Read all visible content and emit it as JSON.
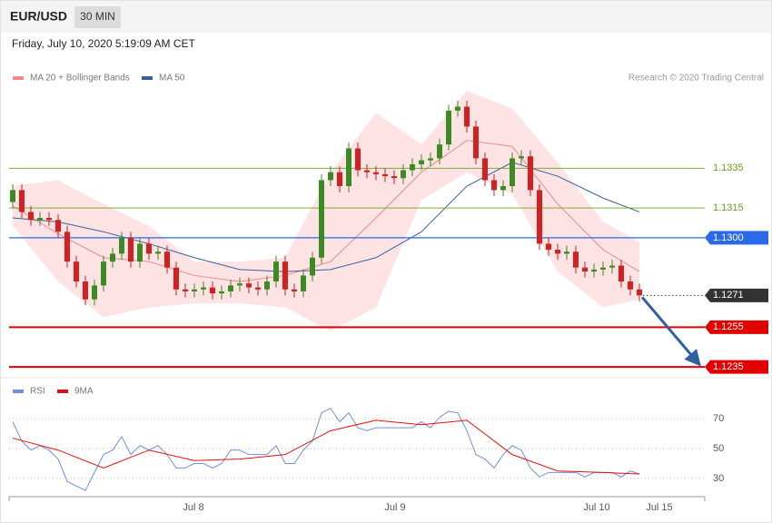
{
  "header": {
    "symbol": "EUR/USD",
    "interval": "30 MIN",
    "timestamp": "Friday, July 10, 2020 5:19:09 AM CET"
  },
  "chart_data": [
    {
      "type": "candlestick",
      "annotation": "Research © 2020 Trading Central",
      "up_color": "#3b8a22",
      "down_color": "#d42020",
      "xlim": [
        -0.4,
        76.2
      ],
      "ylim": [
        1.123,
        1.139
      ],
      "open": [
        1.1318,
        1.1324,
        1.1313,
        1.1309,
        1.131,
        1.1309,
        1.1303,
        1.1288,
        1.1278,
        1.1269,
        1.1276,
        1.1288,
        1.1292,
        1.13,
        1.1288,
        1.1297,
        1.1292,
        1.1293,
        1.1285,
        1.1274,
        1.1273,
        1.1274,
        1.1275,
        1.1272,
        1.1273,
        1.1276,
        1.1277,
        1.1275,
        1.1274,
        1.1278,
        1.1288,
        1.1274,
        1.1273,
        1.1281,
        1.129,
        1.1329,
        1.1333,
        1.1326,
        1.1345,
        1.1334,
        1.1333,
        1.1332,
        1.1331,
        1.133,
        1.1334,
        1.1337,
        1.1339,
        1.134,
        1.1347,
        1.1364,
        1.1366,
        1.1356,
        1.134,
        1.1329,
        1.1324,
        1.1326,
        1.134,
        1.1341,
        1.1324,
        1.1297,
        1.1294,
        1.1292,
        1.1293,
        1.1285,
        1.1283,
        1.1284,
        1.1285,
        1.1286,
        1.1278,
        1.1274
      ],
      "high": [
        1.1327,
        1.1327,
        1.1316,
        1.1313,
        1.1313,
        1.1312,
        1.1306,
        1.1291,
        1.1281,
        1.1279,
        1.1291,
        1.1295,
        1.1303,
        1.1303,
        1.13,
        1.13,
        1.1296,
        1.1296,
        1.1288,
        1.1277,
        1.1277,
        1.1278,
        1.1278,
        1.1276,
        1.1279,
        1.128,
        1.128,
        1.1278,
        1.1281,
        1.1291,
        1.1291,
        1.1277,
        1.1284,
        1.1293,
        1.1332,
        1.1336,
        1.1336,
        1.1348,
        1.1348,
        1.1337,
        1.1336,
        1.1335,
        1.1334,
        1.1337,
        1.134,
        1.1342,
        1.1343,
        1.135,
        1.1367,
        1.1369,
        1.1369,
        1.1359,
        1.1343,
        1.1332,
        1.1329,
        1.1343,
        1.1344,
        1.1344,
        1.1327,
        1.13,
        1.1297,
        1.1296,
        1.1296,
        1.1288,
        1.1287,
        1.1288,
        1.1289,
        1.1289,
        1.1281,
        1.1277
      ],
      "low": [
        1.1315,
        1.131,
        1.1306,
        1.1306,
        1.1306,
        1.13,
        1.1285,
        1.1275,
        1.1266,
        1.1266,
        1.1273,
        1.1285,
        1.1289,
        1.1285,
        1.1285,
        1.1289,
        1.1289,
        1.1282,
        1.1271,
        1.127,
        1.127,
        1.1271,
        1.1269,
        1.1269,
        1.127,
        1.1273,
        1.1272,
        1.1271,
        1.1271,
        1.1275,
        1.1271,
        1.127,
        1.127,
        1.1278,
        1.1287,
        1.1326,
        1.1323,
        1.1323,
        1.1331,
        1.133,
        1.1329,
        1.1328,
        1.1327,
        1.1327,
        1.1331,
        1.1334,
        1.1336,
        1.1337,
        1.1344,
        1.1361,
        1.1353,
        1.1337,
        1.1326,
        1.1321,
        1.1321,
        1.1323,
        1.1337,
        1.1321,
        1.1294,
        1.1291,
        1.1289,
        1.1289,
        1.1282,
        1.128,
        1.128,
        1.1281,
        1.1282,
        1.1275,
        1.1271,
        1.1268
      ],
      "close": [
        1.1324,
        1.1313,
        1.1309,
        1.131,
        1.1309,
        1.1303,
        1.1288,
        1.1278,
        1.1269,
        1.1276,
        1.1288,
        1.1292,
        1.13,
        1.1288,
        1.1297,
        1.1292,
        1.1293,
        1.1285,
        1.1274,
        1.1273,
        1.1274,
        1.1275,
        1.1272,
        1.1273,
        1.1276,
        1.1277,
        1.1275,
        1.1274,
        1.1278,
        1.1288,
        1.1274,
        1.1273,
        1.1281,
        1.129,
        1.1329,
        1.1333,
        1.1326,
        1.1345,
        1.1334,
        1.1333,
        1.1332,
        1.1331,
        1.133,
        1.1334,
        1.1337,
        1.1339,
        1.134,
        1.1347,
        1.1364,
        1.1366,
        1.1356,
        1.134,
        1.1329,
        1.1324,
        1.1326,
        1.134,
        1.1341,
        1.1324,
        1.1297,
        1.1294,
        1.1292,
        1.1293,
        1.1285,
        1.1283,
        1.1284,
        1.1285,
        1.1286,
        1.1278,
        1.1274,
        1.1271
      ],
      "series": [
        {
          "name": "MA 20 + Bollinger Bands",
          "color": "#f08a8a",
          "band_color": "#fde3e3",
          "x": [
            0,
            5,
            10,
            15,
            20,
            25,
            30,
            35,
            40,
            45,
            50,
            55,
            60,
            65,
            69
          ],
          "values": [
            1.1316,
            1.1302,
            1.129,
            1.1288,
            1.1281,
            1.1278,
            1.1281,
            1.1288,
            1.131,
            1.1333,
            1.1349,
            1.1346,
            1.1317,
            1.1294,
            1.1283
          ],
          "upper": [
            1.1326,
            1.1329,
            1.1317,
            1.1306,
            1.1288,
            1.1288,
            1.129,
            1.1333,
            1.1363,
            1.1347,
            1.1374,
            1.1365,
            1.1338,
            1.1308,
            1.1298
          ],
          "lower": [
            1.1306,
            1.1278,
            1.126,
            1.1265,
            1.1267,
            1.1267,
            1.1265,
            1.1253,
            1.1265,
            1.1319,
            1.1333,
            1.1322,
            1.1283,
            1.1265,
            1.1269
          ]
        },
        {
          "name": "MA 50",
          "color": "#3a5f9a",
          "x": [
            0,
            5,
            10,
            15,
            20,
            25,
            30,
            35,
            40,
            45,
            50,
            55,
            60,
            65,
            69
          ],
          "values": [
            1.131,
            1.1308,
            1.1303,
            1.1297,
            1.129,
            1.1284,
            1.1283,
            1.1284,
            1.129,
            1.1303,
            1.1326,
            1.1338,
            1.1331,
            1.132,
            1.1313
          ]
        }
      ],
      "levels": {
        "values": [
          1.1335,
          1.1315,
          1.13,
          1.1271,
          1.1255,
          1.1235
        ],
        "value_labels": [
          "1.1335",
          "1.1315",
          "1.1300",
          "1.1271",
          "1.1255",
          "1.1235"
        ],
        "colors": [
          "#6aa121",
          "#6aa121",
          "#2a6ae8",
          "#333333",
          "#e00000",
          "#e00000"
        ],
        "label_styles": [
          "text",
          "text",
          "box",
          "box",
          "box",
          "box"
        ],
        "line_styles": [
          "solid",
          "solid",
          "solid",
          "dotted",
          "solid",
          "solid"
        ],
        "line_widths": [
          0.8,
          0.8,
          1.2,
          1,
          2,
          2
        ]
      }
    },
    {
      "type": "line",
      "xlim": [
        -0.4,
        76.2
      ],
      "ylim": [
        19,
        89
      ],
      "yticks": [
        30,
        50,
        70
      ],
      "grid": true,
      "xticks": [
        {
          "value": 19.9,
          "label": "Jul 8"
        },
        {
          "value": 42.1,
          "label": "Jul 9"
        },
        {
          "value": 64.3,
          "label": "Jul 10"
        },
        {
          "value": 71.2,
          "label": "Jul 15"
        }
      ],
      "series": [
        {
          "name": "RSI",
          "color": "#6f8fe0",
          "x": [
            0,
            1,
            2,
            3,
            4,
            5,
            6,
            7,
            8,
            9,
            10,
            11,
            12,
            13,
            14,
            15,
            16,
            17,
            18,
            19,
            20,
            21,
            22,
            23,
            24,
            25,
            26,
            27,
            28,
            29,
            30,
            31,
            32,
            33,
            34,
            35,
            36,
            37,
            38,
            39,
            40,
            41,
            42,
            43,
            44,
            45,
            46,
            47,
            48,
            49,
            50,
            51,
            52,
            53,
            54,
            55,
            56,
            57,
            58,
            59,
            60,
            61,
            62,
            63,
            64,
            65,
            66,
            67,
            68,
            69
          ],
          "values": [
            68,
            55,
            49,
            52,
            49,
            43,
            28,
            25,
            22,
            34,
            46,
            49,
            58,
            46,
            52,
            49,
            52,
            46,
            37,
            37,
            40,
            40,
            37,
            40,
            49,
            49,
            46,
            46,
            46,
            52,
            40,
            40,
            49,
            55,
            74,
            77,
            68,
            74,
            64,
            62,
            64,
            64,
            64,
            64,
            64,
            68,
            64,
            71,
            75,
            74,
            62,
            46,
            43,
            37,
            46,
            52,
            49,
            37,
            31,
            34,
            34,
            34,
            34,
            31,
            34,
            34,
            34,
            31,
            35,
            33
          ]
        },
        {
          "name": "9MA",
          "color": "#e01010",
          "x": [
            0,
            5,
            10,
            15,
            20,
            25,
            30,
            35,
            40,
            45,
            50,
            55,
            60,
            65,
            69
          ],
          "values": [
            57,
            49,
            37,
            49,
            42,
            43,
            46,
            62,
            69,
            66,
            69,
            46,
            35,
            34,
            33
          ]
        }
      ]
    }
  ]
}
